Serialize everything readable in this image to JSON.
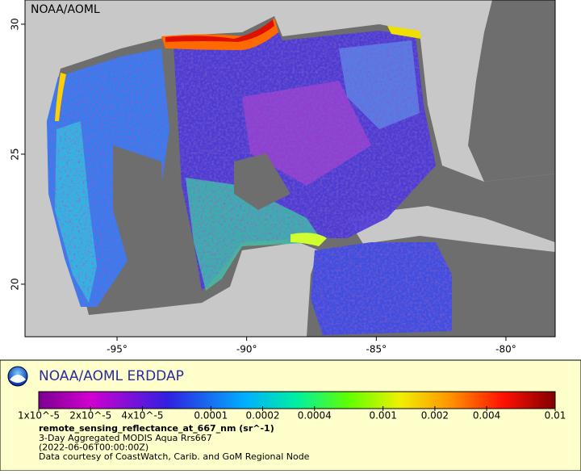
{
  "map": {
    "watermark": "NOAA/AOML",
    "xlim": [
      -98.55,
      -78.1
    ],
    "ylim": [
      17.98,
      30.93
    ],
    "xticks": [
      {
        "value": -95,
        "label": "-95°"
      },
      {
        "value": -90,
        "label": "-90°"
      },
      {
        "value": -85,
        "label": "-85°"
      },
      {
        "value": -80,
        "label": "-80°"
      }
    ],
    "yticks": [
      20,
      25,
      30
    ]
  },
  "legend": {
    "title": "NOAA/AOML ERDDAP",
    "colorbar": {
      "log": true,
      "lim": [
        1e-05,
        0.01
      ],
      "ticks": [
        {
          "value": 1e-05,
          "label": "1x10^-5"
        },
        {
          "value": 2e-05,
          "label": "2x10^-5"
        },
        {
          "value": 4e-05,
          "label": "4x10^-5"
        },
        {
          "value": 0.0001,
          "label": "0.0001"
        },
        {
          "value": 0.0002,
          "label": "0.0002"
        },
        {
          "value": 0.0004,
          "label": "0.0004"
        },
        {
          "value": 0.001,
          "label": "0.001"
        },
        {
          "value": 0.002,
          "label": "0.002"
        },
        {
          "value": 0.004,
          "label": "0.004"
        },
        {
          "value": 0.01,
          "label": "0.01"
        }
      ]
    },
    "variable": "remote_sensing_reflectance_at_667_nm (sr^-1)",
    "lines": [
      "3-Day Aggregated MODIS Aqua Rrs667",
      "(2022-06-06T00:00:00Z)",
      "Data courtesy of CoastWatch, Carib. and GoM Regional Node"
    ]
  }
}
